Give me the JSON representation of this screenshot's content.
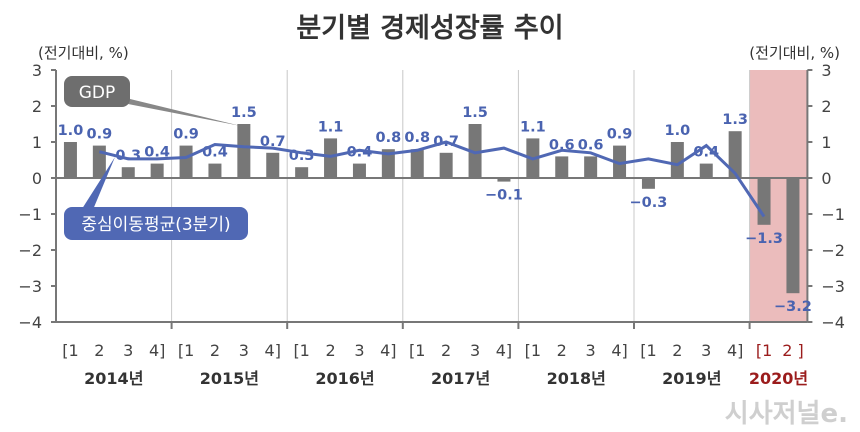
{
  "chart_data": {
    "type": "bar",
    "title": "분기별 경제성장률 추이",
    "ylabel_left": "(전기대비, %)",
    "ylabel_right": "(전기대비, %)",
    "ylim": [
      -4,
      3
    ],
    "yticks": [
      3,
      2,
      1,
      0,
      -1,
      -2,
      -3,
      -4
    ],
    "ytick_labels": [
      "3",
      "2",
      "1",
      "0",
      "−1",
      "−2",
      "−3",
      "−4"
    ],
    "grid": "vertical year separators",
    "years": [
      "2014년",
      "2015년",
      "2016년",
      "2017년",
      "2018년",
      "2019년",
      "2020년"
    ],
    "quarter_labels": [
      [
        "[1",
        "2",
        "3",
        "4]"
      ],
      [
        "[1",
        "2",
        "3",
        "4]"
      ],
      [
        "[1",
        "2",
        "3",
        "4]"
      ],
      [
        "[1",
        "2",
        "3",
        "4]"
      ],
      [
        "[1",
        "2",
        "3",
        "4]"
      ],
      [
        "[1",
        "2",
        "3",
        "4]"
      ],
      [
        "[1",
        "2 ]"
      ]
    ],
    "highlight_year": "2020년",
    "series": [
      {
        "name": "GDP",
        "type": "bar",
        "values": [
          1.0,
          0.9,
          0.3,
          0.4,
          0.9,
          0.4,
          1.5,
          0.7,
          0.3,
          1.1,
          0.4,
          0.8,
          0.8,
          0.7,
          1.5,
          -0.1,
          1.1,
          0.6,
          0.6,
          0.9,
          -0.3,
          1.0,
          0.4,
          1.3,
          -1.3,
          -3.2
        ],
        "labels": [
          "1.0",
          "0.9",
          "0.3",
          "0.4",
          "0.9",
          "0.4",
          "1.5",
          "0.7",
          "0.3",
          "1.1",
          "0.4",
          "0.8",
          "0.8",
          "0.7",
          "1.5",
          "-0.1",
          "1.1",
          "0.6",
          "0.6",
          "0.9",
          "-0.3",
          "1.0",
          "0.4",
          "1.3",
          "-1.3",
          "-3.2"
        ]
      },
      {
        "name": "중심이동평균(3분기)",
        "type": "line",
        "values": [
          null,
          0.73,
          0.53,
          0.53,
          0.57,
          0.93,
          0.87,
          0.83,
          0.7,
          0.6,
          0.77,
          0.67,
          0.77,
          1.0,
          0.7,
          0.83,
          0.53,
          0.77,
          0.7,
          0.4,
          0.53,
          0.37,
          0.9,
          0.13,
          -1.07,
          null
        ]
      }
    ],
    "colors": {
      "bar": "#777777",
      "line": "#5068b4",
      "label": "#4a63b0",
      "highlight": "#ebbcbc",
      "highlight_text": "#9b1c1c",
      "gdp_callout": "#6e6e6e"
    }
  },
  "watermark": "시사저널e."
}
